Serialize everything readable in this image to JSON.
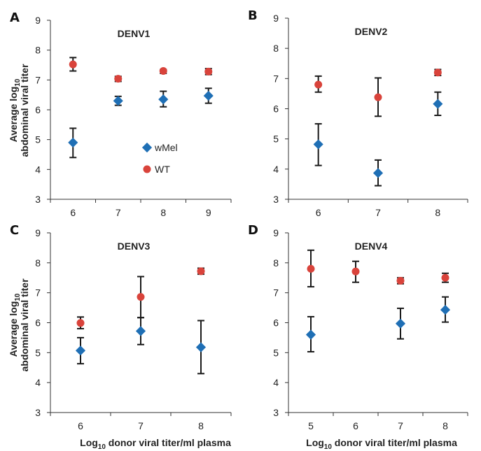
{
  "colors": {
    "wMel": "#1f6fb5",
    "WT": "#d9433b",
    "axis": "#333333",
    "errorbar": "#1a1a1a"
  },
  "axis_labels": {
    "y_line1": "Average log",
    "y_sub": "10",
    "y_line2": "abdominal viral titer",
    "x_pre": "Log",
    "x_sub": "10",
    "x_post": " donor viral titer/ml plasma"
  },
  "legend": {
    "wMel": "wMel",
    "WT": "WT"
  },
  "chart_data": [
    {
      "type": "scatter",
      "panel": "A",
      "title": "DENV1",
      "categories": [
        "6",
        "7",
        "8",
        "9"
      ],
      "ylim": [
        3,
        9
      ],
      "yticks": [
        "3",
        "4",
        "5",
        "6",
        "7",
        "8",
        "9"
      ],
      "series": [
        {
          "name": "wMel",
          "values": [
            4.9,
            6.3,
            6.35,
            6.47
          ],
          "err_low": [
            4.4,
            6.15,
            6.1,
            6.22
          ],
          "err_high": [
            5.38,
            6.45,
            6.62,
            6.72
          ]
        },
        {
          "name": "WT",
          "values": [
            7.52,
            7.04,
            7.3,
            7.28
          ],
          "err_low": [
            7.3,
            6.95,
            7.22,
            7.18
          ],
          "err_high": [
            7.75,
            7.12,
            7.35,
            7.38
          ]
        }
      ]
    },
    {
      "type": "scatter",
      "panel": "B",
      "title": "DENV2",
      "categories": [
        "6",
        "7",
        "8"
      ],
      "ylim": [
        3,
        9
      ],
      "yticks": [
        "3",
        "4",
        "5",
        "6",
        "7",
        "8",
        "9"
      ],
      "series": [
        {
          "name": "wMel",
          "values": [
            4.82,
            3.87,
            6.16
          ],
          "err_low": [
            4.12,
            3.45,
            5.78
          ],
          "err_high": [
            5.5,
            4.3,
            6.55
          ]
        },
        {
          "name": "WT",
          "values": [
            6.8,
            6.38,
            7.2
          ],
          "err_low": [
            6.55,
            5.75,
            7.1
          ],
          "err_high": [
            7.08,
            7.02,
            7.3
          ]
        }
      ]
    },
    {
      "type": "scatter",
      "panel": "C",
      "title": "DENV3",
      "categories": [
        "6",
        "7",
        "8"
      ],
      "ylim": [
        3,
        9
      ],
      "yticks": [
        "3",
        "4",
        "5",
        "6",
        "7",
        "8",
        "9"
      ],
      "series": [
        {
          "name": "wMel",
          "values": [
            5.07,
            5.72,
            5.18
          ],
          "err_low": [
            4.63,
            5.27,
            4.3
          ],
          "err_high": [
            5.5,
            6.17,
            6.07
          ]
        },
        {
          "name": "WT",
          "values": [
            5.99,
            6.86,
            7.72
          ],
          "err_low": [
            5.8,
            6.17,
            7.62
          ],
          "err_high": [
            6.19,
            7.54,
            7.82
          ]
        }
      ]
    },
    {
      "type": "scatter",
      "panel": "D",
      "title": "DENV4",
      "categories": [
        "5",
        "6",
        "7",
        "8"
      ],
      "ylim": [
        3,
        9
      ],
      "yticks": [
        "3",
        "4",
        "5",
        "6",
        "7",
        "8",
        "9"
      ],
      "series": [
        {
          "name": "wMel",
          "values": [
            5.6,
            null,
            5.97,
            6.43
          ],
          "err_low": [
            5.03,
            null,
            5.46,
            6.02
          ],
          "err_high": [
            6.2,
            null,
            6.48,
            6.86
          ]
        },
        {
          "name": "WT",
          "values": [
            7.8,
            7.71,
            7.4,
            7.5
          ],
          "err_low": [
            7.2,
            7.35,
            7.3,
            7.35
          ],
          "err_high": [
            8.42,
            8.05,
            7.5,
            7.65
          ]
        }
      ]
    }
  ]
}
